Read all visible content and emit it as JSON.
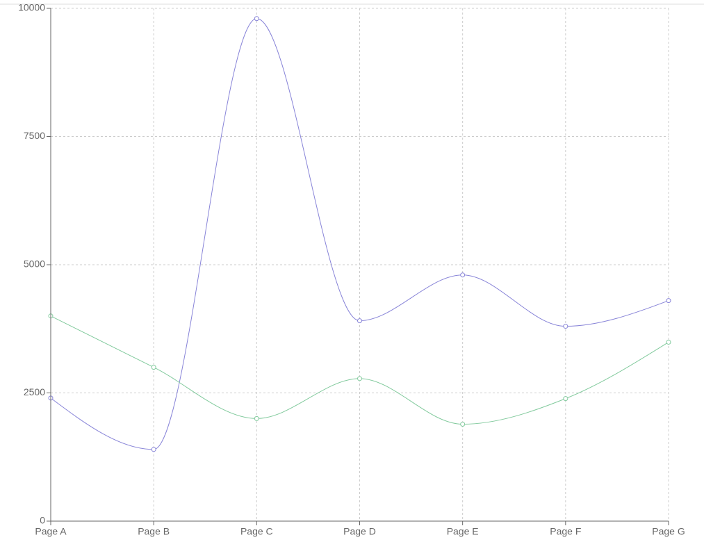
{
  "chart_data": {
    "type": "line",
    "categories": [
      "Page A",
      "Page B",
      "Page C",
      "Page D",
      "Page E",
      "Page F",
      "Page G"
    ],
    "series": [
      {
        "color": "#8884d8",
        "values": [
          2400,
          1398,
          9800,
          3908,
          4800,
          3800,
          4300
        ]
      },
      {
        "color": "#82ca9d",
        "values": [
          4000,
          3000,
          2000,
          2780,
          1890,
          2390,
          3490
        ]
      }
    ],
    "ylim": [
      0,
      10000
    ],
    "yticks": [
      0,
      2500,
      5000,
      7500,
      10000
    ],
    "grid": true,
    "curve": "monotone"
  }
}
